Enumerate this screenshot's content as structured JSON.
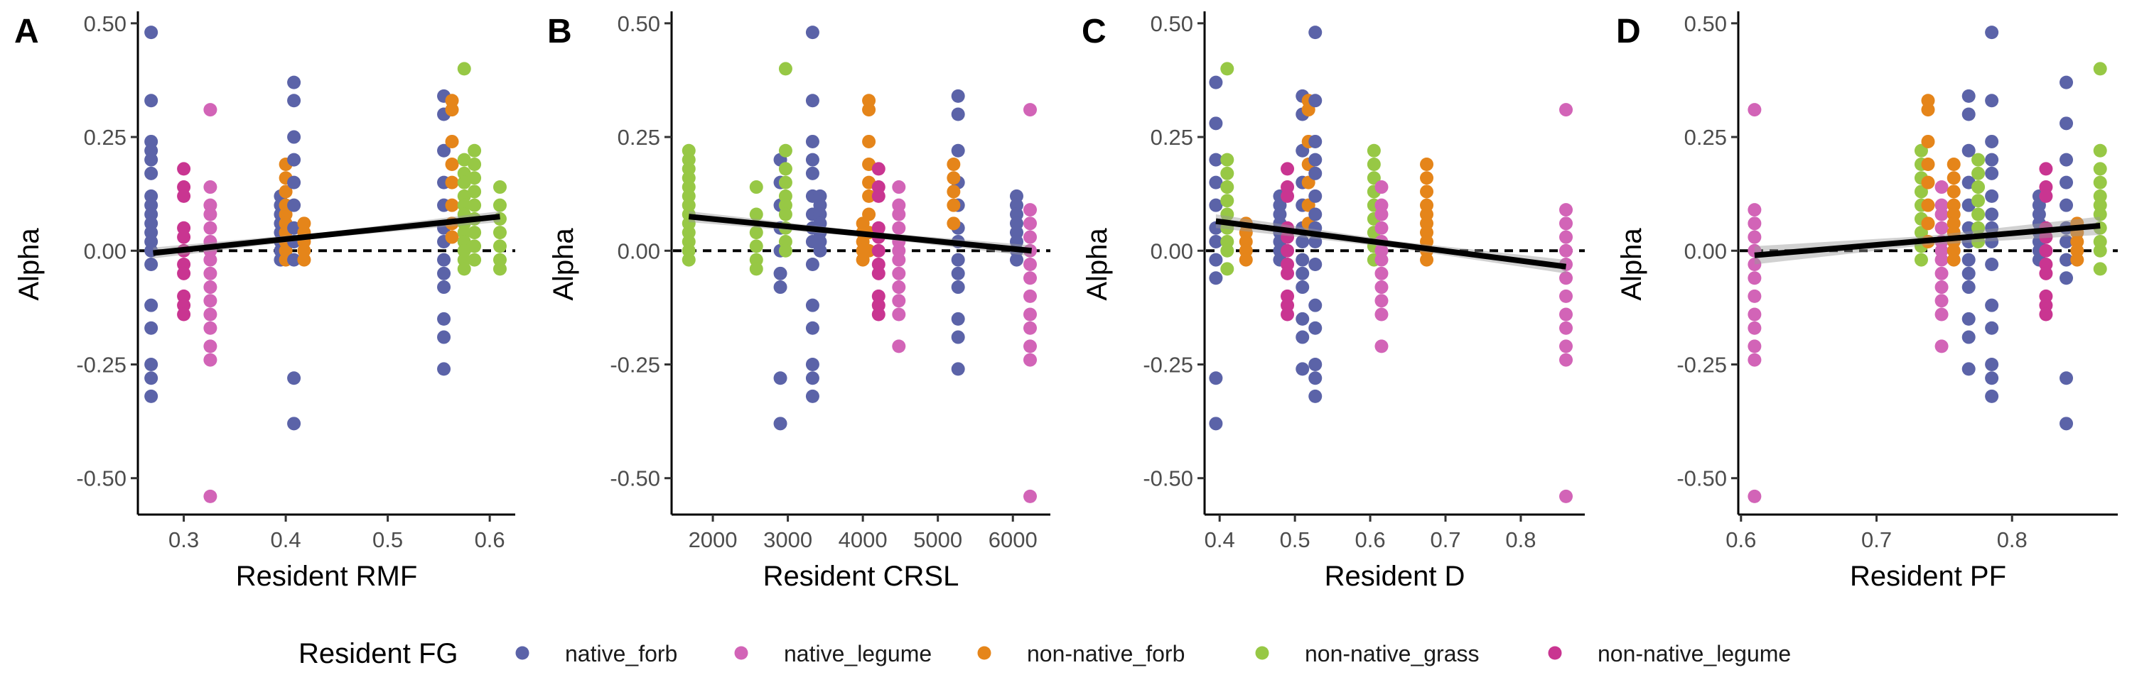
{
  "legend": {
    "title": "Resident FG",
    "entries": [
      {
        "label": "native_forb",
        "color": "#5B63A8"
      },
      {
        "label": "native_legume",
        "color": "#D264B7"
      },
      {
        "label": "non-native_forb",
        "color": "#E5851A"
      },
      {
        "label": "non-native_grass",
        "color": "#97C845"
      },
      {
        "label": "non-native_legume",
        "color": "#C93591"
      }
    ]
  },
  "chart_data": [
    {
      "panel": "A",
      "type": "scatter",
      "xlabel": "Resident RMF",
      "ylabel": "Alpha",
      "xlim": [
        0.255,
        0.625
      ],
      "ylim": [
        -0.58,
        0.52
      ],
      "xticks": [
        0.3,
        0.4,
        0.5,
        0.6
      ],
      "xtick_labels": [
        "0.3",
        "0.4",
        "0.5",
        "0.6"
      ],
      "yticks": [
        -0.5,
        -0.25,
        0.0,
        0.25,
        0.5
      ],
      "ytick_labels": [
        "-0.50",
        "-0.25",
        "0.00",
        "0.25",
        "0.50"
      ],
      "reference_line": {
        "y": 0,
        "style": "dashed"
      },
      "trend": {
        "x": [
          0.27,
          0.61
        ],
        "y": [
          -0.005,
          0.075
        ],
        "ci": 0.012
      },
      "clusters": [
        {
          "group": "native_forb",
          "x": 0.268,
          "values": [
            0.48,
            0.33,
            0.24,
            0.22,
            0.2,
            0.17,
            0.12,
            0.1,
            0.08,
            0.06,
            0.04,
            0.02,
            0.0,
            -0.03,
            -0.12,
            -0.17,
            -0.25,
            -0.28,
            -0.32
          ]
        },
        {
          "group": "non-native_legume",
          "x": 0.3,
          "values": [
            0.18,
            0.14,
            0.12,
            0.05,
            0.03,
            0.0,
            -0.03,
            -0.05,
            -0.1,
            -0.12,
            -0.14
          ]
        },
        {
          "group": "native_legume",
          "x": 0.326,
          "values": [
            0.31,
            0.14,
            0.1,
            0.08,
            0.05,
            0.02,
            0.0,
            -0.02,
            -0.05,
            -0.08,
            -0.11,
            -0.14,
            -0.17,
            -0.21,
            -0.24,
            -0.54
          ]
        },
        {
          "group": "native_forb",
          "x": 0.395,
          "values": [
            0.12,
            0.1,
            0.08,
            0.06,
            0.04,
            0.02,
            0.0,
            -0.02
          ]
        },
        {
          "group": "non-native_forb",
          "x": 0.4,
          "values": [
            0.19,
            0.16,
            0.13,
            0.1,
            0.08,
            0.06,
            0.04,
            0.02,
            0.0,
            -0.02
          ]
        },
        {
          "group": "native_forb",
          "x": 0.408,
          "values": [
            0.37,
            0.33,
            0.25,
            0.2,
            0.15,
            0.1,
            0.05,
            0.02,
            -0.02,
            -0.28,
            -0.38
          ]
        },
        {
          "group": "non-native_forb",
          "x": 0.418,
          "values": [
            0.06,
            0.04,
            0.02,
            0.0,
            -0.02
          ]
        },
        {
          "group": "native_forb",
          "x": 0.555,
          "values": [
            0.34,
            0.3,
            0.22,
            0.15,
            0.1,
            0.05,
            0.02,
            -0.02,
            -0.05,
            -0.08,
            -0.15,
            -0.19,
            -0.26
          ]
        },
        {
          "group": "non-native_forb",
          "x": 0.563,
          "values": [
            0.33,
            0.31,
            0.24,
            0.19,
            0.15,
            0.1,
            0.06,
            0.03
          ]
        },
        {
          "group": "non-native_grass",
          "x": 0.575,
          "values": [
            0.4,
            0.2,
            0.17,
            0.15,
            0.12,
            0.1,
            0.08,
            0.06,
            0.04,
            0.02,
            0.0,
            -0.02,
            -0.04
          ]
        },
        {
          "group": "non-native_grass",
          "x": 0.585,
          "values": [
            0.22,
            0.19,
            0.16,
            0.13,
            0.1,
            0.07,
            0.04,
            0.01,
            -0.02
          ]
        },
        {
          "group": "non-native_grass",
          "x": 0.61,
          "values": [
            0.14,
            0.1,
            0.07,
            0.04,
            0.01,
            -0.02,
            -0.04
          ]
        }
      ]
    },
    {
      "panel": "B",
      "type": "scatter",
      "xlabel": "Resident CRSL",
      "ylabel": "Alpha",
      "xlim": [
        1450,
        6500
      ],
      "ylim": [
        -0.58,
        0.52
      ],
      "xticks": [
        2000,
        3000,
        4000,
        5000,
        6000
      ],
      "xtick_labels": [
        "2000",
        "3000",
        "4000",
        "5000",
        "6000"
      ],
      "yticks": [
        -0.5,
        -0.25,
        0.0,
        0.25,
        0.5
      ],
      "ytick_labels": [
        "-0.50",
        "-0.25",
        "0.00",
        "0.25",
        "0.50"
      ],
      "reference_line": {
        "y": 0,
        "style": "dashed"
      },
      "trend": {
        "x": [
          1680,
          6250
        ],
        "y": [
          0.075,
          0.0
        ],
        "ci": 0.012
      },
      "clusters": [
        {
          "group": "non-native_grass",
          "x": 1680,
          "values": [
            0.22,
            0.2,
            0.18,
            0.16,
            0.14,
            0.12,
            0.1,
            0.08,
            0.06,
            0.04,
            0.02,
            0.0,
            -0.02
          ]
        },
        {
          "group": "non-native_grass",
          "x": 2580,
          "values": [
            0.14,
            0.08,
            0.04,
            0.01,
            -0.02,
            -0.04
          ]
        },
        {
          "group": "native_forb",
          "x": 2900,
          "values": [
            0.2,
            0.15,
            0.1,
            0.05,
            0.0,
            -0.05,
            -0.08,
            -0.28,
            -0.38
          ]
        },
        {
          "group": "non-native_grass",
          "x": 2970,
          "values": [
            0.4,
            0.22,
            0.18,
            0.15,
            0.12,
            0.1,
            0.08,
            0.05,
            0.02,
            0.0
          ]
        },
        {
          "group": "native_forb",
          "x": 3330,
          "values": [
            0.48,
            0.33,
            0.24,
            0.2,
            0.17,
            0.12,
            0.08,
            0.05,
            0.02,
            -0.03,
            -0.12,
            -0.17,
            -0.25,
            -0.28,
            -0.32
          ]
        },
        {
          "group": "native_forb",
          "x": 3430,
          "values": [
            0.12,
            0.1,
            0.08,
            0.06,
            0.04,
            0.02,
            0.0
          ]
        },
        {
          "group": "non-native_forb",
          "x": 4000,
          "values": [
            0.06,
            0.04,
            0.02,
            0.0,
            -0.02
          ]
        },
        {
          "group": "non-native_forb",
          "x": 4080,
          "values": [
            0.33,
            0.31,
            0.24,
            0.19,
            0.15,
            0.12,
            0.08,
            0.04,
            0.0
          ]
        },
        {
          "group": "non-native_legume",
          "x": 4210,
          "values": [
            0.18,
            0.14,
            0.12,
            0.05,
            0.03,
            0.0,
            -0.03,
            -0.05,
            -0.1,
            -0.12,
            -0.14
          ]
        },
        {
          "group": "native_legume",
          "x": 4480,
          "values": [
            0.14,
            0.1,
            0.08,
            0.05,
            0.02,
            0.0,
            -0.02,
            -0.05,
            -0.08,
            -0.11,
            -0.14,
            -0.21
          ]
        },
        {
          "group": "native_forb",
          "x": 5270,
          "values": [
            0.34,
            0.3,
            0.22,
            0.15,
            0.1,
            0.05,
            0.02,
            -0.02,
            -0.05,
            -0.08,
            -0.15,
            -0.19,
            -0.26
          ]
        },
        {
          "group": "non-native_forb",
          "x": 5210,
          "values": [
            0.19,
            0.16,
            0.13,
            0.1,
            0.06
          ]
        },
        {
          "group": "native_forb",
          "x": 6050,
          "values": [
            0.12,
            0.1,
            0.08,
            0.06,
            0.04,
            0.02,
            0.0,
            -0.02
          ]
        },
        {
          "group": "native_legume",
          "x": 6230,
          "values": [
            0.31,
            0.09,
            0.06,
            0.03,
            0.0,
            -0.03,
            -0.06,
            -0.1,
            -0.14,
            -0.17,
            -0.21,
            -0.24,
            -0.54
          ]
        }
      ]
    },
    {
      "panel": "C",
      "type": "scatter",
      "xlabel": "Resident D",
      "ylabel": "Alpha",
      "xlim": [
        0.38,
        0.885
      ],
      "ylim": [
        -0.58,
        0.52
      ],
      "xticks": [
        0.4,
        0.5,
        0.6,
        0.7,
        0.8
      ],
      "xtick_labels": [
        "0.4",
        "0.5",
        "0.6",
        "0.7",
        "0.8"
      ],
      "yticks": [
        -0.5,
        -0.25,
        0.0,
        0.25,
        0.5
      ],
      "ytick_labels": [
        "-0.50",
        "-0.25",
        "0.00",
        "0.25",
        "0.50"
      ],
      "reference_line": {
        "y": 0,
        "style": "dashed"
      },
      "trend": {
        "x": [
          0.395,
          0.86
        ],
        "y": [
          0.065,
          -0.035
        ],
        "ci": 0.015
      },
      "clusters": [
        {
          "group": "native_forb",
          "x": 0.395,
          "values": [
            0.37,
            0.28,
            0.2,
            0.15,
            0.1,
            0.05,
            0.02,
            -0.02,
            -0.06,
            -0.28,
            -0.38
          ]
        },
        {
          "group": "non-native_grass",
          "x": 0.41,
          "values": [
            0.4,
            0.2,
            0.17,
            0.14,
            0.11,
            0.08,
            0.05,
            0.02,
            0.0,
            -0.04
          ]
        },
        {
          "group": "non-native_forb",
          "x": 0.435,
          "values": [
            0.06,
            0.04,
            0.02,
            0.0,
            -0.02
          ]
        },
        {
          "group": "native_forb",
          "x": 0.48,
          "values": [
            0.12,
            0.1,
            0.08,
            0.06,
            0.04,
            0.02,
            0.0,
            -0.02
          ]
        },
        {
          "group": "non-native_legume",
          "x": 0.49,
          "values": [
            0.18,
            0.14,
            0.12,
            0.05,
            0.03,
            0.0,
            -0.03,
            -0.05,
            -0.1,
            -0.12,
            -0.14
          ]
        },
        {
          "group": "native_forb",
          "x": 0.51,
          "values": [
            0.34,
            0.3,
            0.22,
            0.15,
            0.1,
            0.05,
            0.02,
            -0.02,
            -0.05,
            -0.08,
            -0.15,
            -0.19,
            -0.26
          ]
        },
        {
          "group": "non-native_forb",
          "x": 0.518,
          "values": [
            0.33,
            0.31,
            0.24,
            0.19,
            0.15,
            0.1,
            0.06
          ]
        },
        {
          "group": "native_forb",
          "x": 0.527,
          "values": [
            0.48,
            0.33,
            0.24,
            0.2,
            0.17,
            0.12,
            0.08,
            0.05,
            0.02,
            -0.03,
            -0.12,
            -0.17,
            -0.25,
            -0.28,
            -0.32
          ]
        },
        {
          "group": "non-native_grass",
          "x": 0.605,
          "values": [
            0.22,
            0.19,
            0.16,
            0.13,
            0.1,
            0.07,
            0.04,
            0.01,
            -0.02
          ]
        },
        {
          "group": "native_legume",
          "x": 0.615,
          "values": [
            0.14,
            0.1,
            0.08,
            0.05,
            0.02,
            0.0,
            -0.02,
            -0.05,
            -0.08,
            -0.11,
            -0.14,
            -0.21
          ]
        },
        {
          "group": "non-native_forb",
          "x": 0.675,
          "values": [
            0.19,
            0.16,
            0.13,
            0.1,
            0.08,
            0.06,
            0.04,
            0.02,
            0.0,
            -0.02
          ]
        },
        {
          "group": "native_legume",
          "x": 0.86,
          "values": [
            0.31,
            0.09,
            0.06,
            0.03,
            0.0,
            -0.03,
            -0.06,
            -0.1,
            -0.14,
            -0.17,
            -0.21,
            -0.24,
            -0.54
          ]
        }
      ]
    },
    {
      "panel": "D",
      "type": "scatter",
      "xlabel": "Resident PF",
      "ylabel": "Alpha",
      "xlim": [
        0.598,
        0.878
      ],
      "ylim": [
        -0.58,
        0.52
      ],
      "xticks": [
        0.6,
        0.7,
        0.8
      ],
      "xtick_labels": [
        "0.6",
        "0.7",
        "0.8"
      ],
      "yticks": [
        -0.5,
        -0.25,
        0.0,
        0.25,
        0.5
      ],
      "ytick_labels": [
        "-0.50",
        "-0.25",
        "0.00",
        "0.25",
        "0.50"
      ],
      "reference_line": {
        "y": 0,
        "style": "dashed"
      },
      "trend": {
        "x": [
          0.61,
          0.865
        ],
        "y": [
          -0.01,
          0.055
        ],
        "ci": 0.02
      },
      "clusters": [
        {
          "group": "native_legume",
          "x": 0.61,
          "values": [
            0.31,
            0.09,
            0.06,
            0.03,
            0.0,
            -0.03,
            -0.06,
            -0.1,
            -0.14,
            -0.17,
            -0.21,
            -0.24,
            -0.54
          ]
        },
        {
          "group": "non-native_grass",
          "x": 0.733,
          "values": [
            0.22,
            0.19,
            0.16,
            0.13,
            0.1,
            0.07,
            0.04,
            0.01,
            -0.02
          ]
        },
        {
          "group": "non-native_forb",
          "x": 0.738,
          "values": [
            0.33,
            0.31,
            0.24,
            0.19,
            0.15,
            0.1,
            0.06,
            0.02
          ]
        },
        {
          "group": "native_legume",
          "x": 0.748,
          "values": [
            0.14,
            0.1,
            0.08,
            0.05,
            0.02,
            0.0,
            -0.02,
            -0.05,
            -0.08,
            -0.11,
            -0.14,
            -0.21
          ]
        },
        {
          "group": "non-native_forb",
          "x": 0.757,
          "values": [
            0.19,
            0.16,
            0.13,
            0.1,
            0.08,
            0.06,
            0.04,
            0.02,
            0.0,
            -0.02
          ]
        },
        {
          "group": "native_forb",
          "x": 0.768,
          "values": [
            0.34,
            0.3,
            0.22,
            0.15,
            0.1,
            0.05,
            0.02,
            -0.02,
            -0.05,
            -0.08,
            -0.15,
            -0.19,
            -0.26
          ]
        },
        {
          "group": "non-native_grass",
          "x": 0.775,
          "values": [
            0.2,
            0.17,
            0.14,
            0.11,
            0.08,
            0.05,
            0.02
          ]
        },
        {
          "group": "native_forb",
          "x": 0.785,
          "values": [
            0.48,
            0.33,
            0.24,
            0.2,
            0.17,
            0.12,
            0.08,
            0.05,
            0.02,
            -0.03,
            -0.12,
            -0.17,
            -0.25,
            -0.28,
            -0.32
          ]
        },
        {
          "group": "native_forb",
          "x": 0.82,
          "values": [
            0.12,
            0.1,
            0.08,
            0.06,
            0.04,
            0.02,
            0.0,
            -0.02
          ]
        },
        {
          "group": "non-native_legume",
          "x": 0.825,
          "values": [
            0.18,
            0.14,
            0.12,
            0.05,
            0.03,
            0.0,
            -0.03,
            -0.05,
            -0.1,
            -0.12,
            -0.14
          ]
        },
        {
          "group": "native_forb",
          "x": 0.84,
          "values": [
            0.37,
            0.28,
            0.2,
            0.15,
            0.1,
            0.05,
            0.02,
            -0.02,
            -0.06,
            -0.28,
            -0.38
          ]
        },
        {
          "group": "non-native_forb",
          "x": 0.848,
          "values": [
            0.06,
            0.04,
            0.02,
            0.0,
            -0.02
          ]
        },
        {
          "group": "non-native_grass",
          "x": 0.865,
          "values": [
            0.4,
            0.22,
            0.18,
            0.15,
            0.12,
            0.1,
            0.08,
            0.05,
            0.02,
            0.0,
            -0.04
          ]
        }
      ]
    }
  ]
}
